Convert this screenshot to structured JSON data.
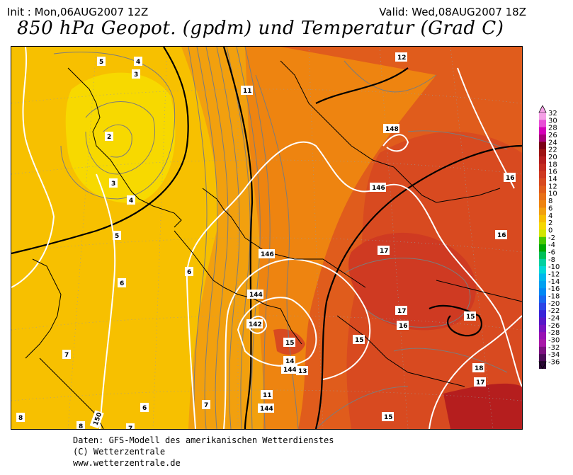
{
  "header": {
    "init": "Init : Mon,06AUG2007 12Z",
    "valid": "Valid: Wed,08AUG2007 18Z",
    "title": "850 hPa Geopot. (gpdm) und Temperatur (Grad C)"
  },
  "legend": {
    "values": [
      "32",
      "30",
      "28",
      "26",
      "24",
      "22",
      "20",
      "18",
      "16",
      "14",
      "12",
      "10",
      "8",
      "6",
      "4",
      "2",
      "0",
      "-2",
      "-4",
      "-6",
      "-8",
      "-10",
      "-12",
      "-14",
      "-16",
      "-18",
      "-20",
      "-22",
      "-24",
      "-26",
      "-28",
      "-30",
      "-32",
      "-34",
      "-36"
    ],
    "colors": [
      "#f4a0e6",
      "#e84fd6",
      "#d400b8",
      "#a8007a",
      "#7a0018",
      "#9e1414",
      "#b51e1e",
      "#c42c20",
      "#cf3a22",
      "#d84a20",
      "#e05c1c",
      "#e87018",
      "#ee8410",
      "#f2a00e",
      "#f7be00",
      "#f6d800",
      "#d2e600",
      "#48c800",
      "#00a800",
      "#00c058",
      "#00d0a0",
      "#00d8d8",
      "#00b8ec",
      "#00a0f0",
      "#0088f4",
      "#1868f0",
      "#2c46e6",
      "#3a24d8",
      "#5818c8",
      "#7814c0",
      "#9812b4",
      "#a818a8",
      "#7c1080",
      "#4c0c58",
      "#2c0838"
    ]
  },
  "map": {
    "contour_labels": [
      "5",
      "4",
      "3",
      "2",
      "3",
      "4",
      "5",
      "6",
      "6",
      "7",
      "7",
      "6",
      "7",
      "8",
      "8",
      "7",
      "11",
      "12",
      "148",
      "146",
      "16",
      "16",
      "17",
      "17",
      "16",
      "15",
      "15",
      "146",
      "144",
      "142",
      "15",
      "14",
      "144",
      "13",
      "11",
      "144",
      "15",
      "17",
      "18",
      "150"
    ],
    "colors": {
      "yellow": "#f7d900",
      "light_orange": "#f7c000",
      "orange": "#f2a00e",
      "dark_orange": "#ee8410",
      "red_orange": "#e05c1c",
      "red": "#d84a20",
      "dark_red": "#cf3a22",
      "deep_red": "#b51e1e"
    }
  },
  "footer": {
    "line1": "Daten: GFS-Modell des amerikanischen Wetterdienstes",
    "line2": "(C) Wetterzentrale",
    "line3": "www.wetterzentrale.de"
  }
}
